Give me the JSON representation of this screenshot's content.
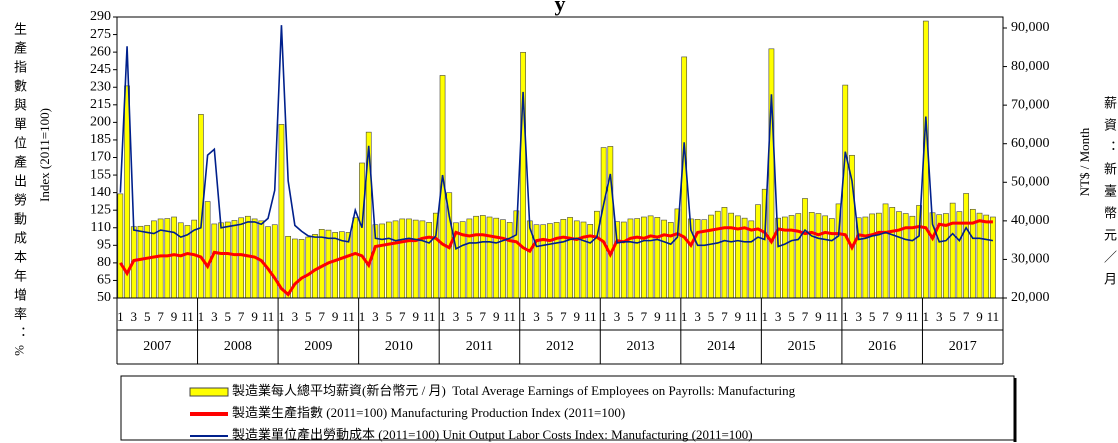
{
  "chart_data": {
    "type": "combo",
    "title_fragment": "y",
    "ylabel": "Index (2011=100)",
    "ylabel_zh": "生產指數與單位產出勞動成本年增率：%",
    "y2label": "NT$ / Month",
    "y2label_zh": "薪資：新臺幣元／月",
    "categories": [
      "1",
      null,
      "3",
      null,
      "5",
      null,
      "7",
      null,
      "9",
      null,
      "11",
      null,
      "1",
      null,
      "3",
      null,
      "5",
      null,
      "7",
      null,
      "9",
      null,
      "11",
      null,
      "1",
      null,
      "3",
      null,
      "5",
      null,
      "7",
      null,
      "9",
      null,
      "11",
      null,
      "1",
      null,
      "3",
      null,
      "5",
      null,
      "7",
      null,
      "9",
      null,
      "11",
      null,
      "1",
      null,
      "3",
      null,
      "5",
      null,
      "7",
      null,
      "9",
      null,
      "11",
      null,
      "1",
      null,
      "3",
      null,
      "5",
      null,
      "7",
      null,
      "9",
      null,
      "11",
      null,
      "1",
      null,
      "3",
      null,
      "5",
      null,
      "7",
      null,
      "9",
      null,
      "11",
      null,
      "1",
      null,
      "3",
      null,
      "5",
      null,
      "7",
      null,
      "9",
      null,
      "11",
      null,
      "1",
      null,
      "3",
      null,
      "5",
      null,
      "7",
      null,
      "9",
      null,
      "11",
      null,
      "1",
      null,
      "3",
      null,
      "5",
      null,
      "7",
      null,
      "9",
      null,
      "11",
      null,
      "1",
      null,
      "3",
      null,
      "5",
      null,
      "7",
      null,
      "9",
      null,
      "11",
      null
    ],
    "years": [
      "2007",
      "2008",
      "2009",
      "2010",
      "2011",
      "2012",
      "2013",
      "2014",
      "2015",
      "2016",
      "2017"
    ],
    "ylim": [
      50,
      290
    ],
    "yticks": [
      50,
      65,
      80,
      95,
      110,
      125,
      140,
      155,
      170,
      185,
      200,
      215,
      230,
      245,
      260,
      275,
      290
    ],
    "y2lim": [
      20000,
      92850
    ],
    "y2ticks": [
      {
        "value": 20000,
        "label": "20,000"
      },
      {
        "value": 30000,
        "label": "30,000"
      },
      {
        "value": 40000,
        "label": "40,000"
      },
      {
        "value": 50000,
        "label": "50,000"
      },
      {
        "value": 60000,
        "label": "60,000"
      },
      {
        "value": 70000,
        "label": "70,000"
      },
      {
        "value": 80000,
        "label": "80,000"
      },
      {
        "value": 90000,
        "label": "90,000"
      }
    ],
    "series": [
      {
        "name": "製造業每人總平均薪資(新台幣元 / 月)  Total Average Earnings of Employees on Payrolls: Manufacturing",
        "color": "#ffff00",
        "type": "bar",
        "axis": "y2",
        "values": [
          47000,
          75000,
          38500,
          38600,
          38800,
          40000,
          40500,
          40600,
          41000,
          39500,
          38800,
          40200,
          67600,
          45000,
          39200,
          39500,
          39700,
          40100,
          40800,
          41200,
          40500,
          40000,
          38500,
          39000,
          65000,
          36000,
          35300,
          35200,
          35800,
          36500,
          37800,
          37600,
          37000,
          37200,
          37000,
          40800,
          55000,
          63000,
          39000,
          39200,
          39700,
          40000,
          40500,
          40500,
          40200,
          40000,
          39600,
          42000,
          77700,
          47300,
          39500,
          39800,
          40500,
          41200,
          41400,
          41000,
          40700,
          40300,
          39600,
          42600,
          83700,
          40000,
          39000,
          39000,
          39300,
          39600,
          40400,
          40900,
          40000,
          39700,
          39100,
          42500,
          59000,
          59300,
          39800,
          39700,
          40500,
          40600,
          41000,
          41300,
          40900,
          40200,
          39600,
          43100,
          82500,
          40500,
          40400,
          40300,
          41500,
          42500,
          43500,
          42000,
          41300,
          40700,
          40000,
          44200,
          48200,
          84600,
          40700,
          41000,
          41400,
          41900,
          45800,
          42200,
          41900,
          41300,
          40600,
          44400,
          75200,
          57000,
          40800,
          41000,
          41800,
          42000,
          44400,
          43500,
          42400,
          41900,
          41200,
          44000,
          91800,
          42100,
          41600,
          41900,
          44600,
          42400,
          47100,
          43000,
          42000,
          41500,
          41000,
          null
        ]
      },
      {
        "name": "製造業生產指數 (2011=100) Manufacturing Production Index (2011=100)",
        "color": "#ff0000",
        "type": "line",
        "values": [
          80,
          71,
          82,
          83,
          84,
          85,
          86,
          86,
          87,
          86,
          88,
          87,
          85,
          77,
          89,
          88,
          88,
          87,
          87,
          86,
          85,
          82,
          75,
          67,
          58,
          53,
          62,
          67,
          70,
          74,
          77,
          80,
          82,
          84,
          86,
          88,
          86,
          78,
          94,
          95,
          96,
          97,
          98,
          99,
          99,
          101,
          102,
          101,
          96,
          93,
          106,
          104,
          103,
          104,
          104,
          103,
          102,
          101,
          99,
          98,
          93,
          90,
          99,
          100,
          99,
          101,
          102,
          101,
          100,
          102,
          103,
          102,
          98,
          87,
          99,
          98,
          101,
          102,
          101,
          103,
          102,
          104,
          103,
          105,
          102,
          95,
          106,
          107,
          108,
          109,
          110,
          110,
          109,
          110,
          108,
          109,
          106,
          98,
          109,
          108,
          108,
          107,
          105,
          106,
          104,
          106,
          105,
          105,
          104,
          93,
          104,
          103,
          104,
          106,
          106,
          107,
          108,
          110,
          110,
          111,
          110,
          101,
          113,
          112,
          114,
          114,
          114,
          114,
          116,
          115,
          115,
          null
        ]
      },
      {
        "name": "製造業單位產出勞動成本 (2011=100) Unit Output Labor Costs Index: Manufacturing (2011=100)",
        "color": "#00208c",
        "type": "line",
        "values": [
          140,
          265,
          108,
          107,
          106,
          105,
          108,
          107,
          106,
          102,
          104,
          108,
          110,
          172,
          177,
          110,
          111,
          112,
          113,
          115,
          115,
          113,
          118,
          142,
          283,
          150,
          112,
          107,
          103,
          102,
          102,
          101,
          101,
          99,
          98,
          125,
          110,
          180,
          101,
          100,
          101,
          99,
          100,
          101,
          100,
          99,
          97,
          103,
          155,
          120,
          92,
          95,
          97,
          97,
          98,
          98,
          97,
          99,
          101,
          104,
          226,
          110,
          94,
          95,
          96,
          97,
          98,
          100,
          101,
          99,
          97,
          102,
          130,
          156,
          97,
          98,
          98,
          97,
          99,
          99,
          100,
          98,
          96,
          102,
          183,
          108,
          95,
          95,
          96,
          97,
          99,
          98,
          99,
          98,
          98,
          102,
          100,
          224,
          94,
          96,
          99,
          100,
          108,
          103,
          101,
          100,
          99,
          103,
          175,
          150,
          100,
          101,
          103,
          104,
          106,
          104,
          102,
          100,
          99,
          103,
          205,
          113,
          98,
          99,
          105,
          99,
          110,
          101,
          101,
          100,
          99,
          null
        ]
      }
    ]
  }
}
